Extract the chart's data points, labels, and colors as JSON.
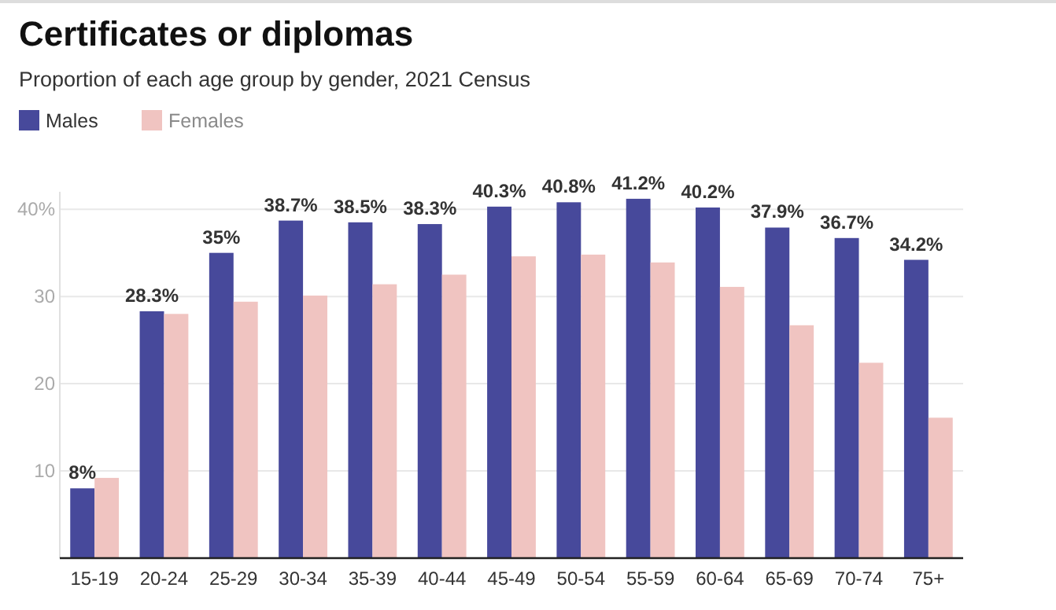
{
  "chart_data": {
    "type": "bar",
    "title": "Certificates or diplomas",
    "subtitle": "Proportion of each age group by gender, 2021 Census",
    "categories": [
      "15-19",
      "20-24",
      "25-29",
      "30-34",
      "35-39",
      "40-44",
      "45-49",
      "50-54",
      "55-59",
      "60-64",
      "65-69",
      "70-74",
      "75+"
    ],
    "series": [
      {
        "name": "Males",
        "color": "#47499b",
        "values": [
          8,
          28.3,
          35,
          38.7,
          38.5,
          38.3,
          40.3,
          40.8,
          41.2,
          40.2,
          37.9,
          36.7,
          34.2
        ],
        "value_labels": [
          "8%",
          "28.3%",
          "35%",
          "38.7%",
          "38.5%",
          "38.3%",
          "40.3%",
          "40.8%",
          "41.2%",
          "40.2%",
          "37.9%",
          "36.7%",
          "34.2%"
        ]
      },
      {
        "name": "Females",
        "color": "#f0c4c1",
        "values": [
          9.2,
          28.0,
          29.4,
          30.1,
          31.4,
          32.5,
          34.6,
          34.8,
          33.9,
          31.1,
          26.7,
          22.4,
          16.1
        ]
      }
    ],
    "ylim": [
      0,
      42
    ],
    "yticks": [
      10,
      20,
      30,
      {
        "value": 40,
        "label": "40%"
      }
    ],
    "grid": "y",
    "legend": "top left"
  }
}
